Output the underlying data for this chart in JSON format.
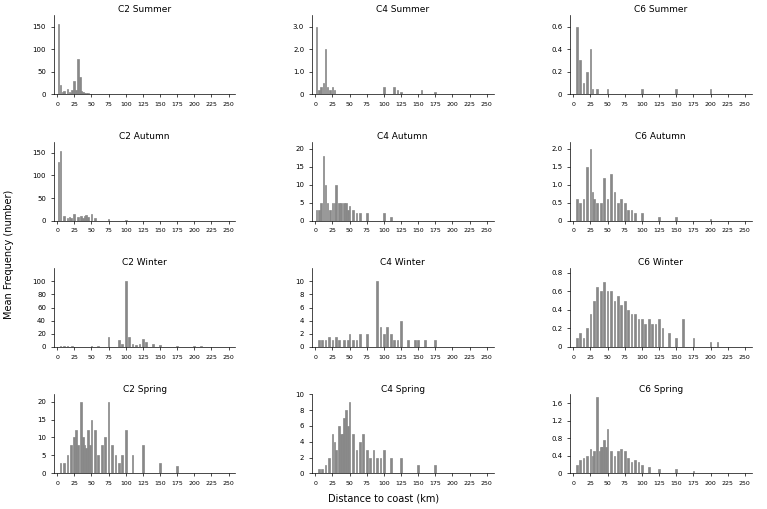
{
  "titles": [
    [
      "C2 Summer",
      "C4 Summer",
      "C6 Summer"
    ],
    [
      "C2 Autumn",
      "C4 Autumn",
      "C6 Autumn"
    ],
    [
      "C2 Winter",
      "C4 Winter",
      "C6 Winter"
    ],
    [
      "C2 Spring",
      "C4 Spring",
      "C6 Spring"
    ]
  ],
  "xlabel": "Distance to coast (km)",
  "ylabel": "Mean Frequency (number)",
  "x_ticks": [
    0,
    25,
    50,
    75,
    100,
    125,
    150,
    175,
    200,
    225,
    250
  ],
  "ylims": [
    [
      [
        0,
        175
      ],
      [
        0,
        3.5
      ],
      [
        0,
        0.7
      ]
    ],
    [
      [
        0,
        175
      ],
      [
        0,
        22
      ],
      [
        0,
        2.2
      ]
    ],
    [
      [
        0,
        120
      ],
      [
        0,
        12
      ],
      [
        0,
        0.85
      ]
    ],
    [
      [
        0,
        22
      ],
      [
        0,
        10
      ],
      [
        0,
        1.8
      ]
    ]
  ],
  "yticks": [
    [
      [
        0,
        50,
        100,
        150
      ],
      [
        0,
        1.0,
        2.0,
        3.0
      ],
      [
        0,
        0.2,
        0.4,
        0.6
      ]
    ],
    [
      [
        0,
        50,
        100,
        150
      ],
      [
        0,
        5,
        10,
        15,
        20
      ],
      [
        0,
        0.5,
        1.0,
        1.5,
        2.0
      ]
    ],
    [
      [
        0,
        20,
        40,
        60,
        80,
        100
      ],
      [
        0,
        2,
        4,
        6,
        8,
        10
      ],
      [
        0,
        0.2,
        0.4,
        0.6,
        0.8
      ]
    ],
    [
      [
        0,
        5,
        10,
        15,
        20
      ],
      [
        0,
        2,
        4,
        6,
        8,
        10
      ],
      [
        0,
        0.4,
        0.8,
        1.2,
        1.6
      ]
    ]
  ],
  "bar_color": "#888888",
  "bar_width": 2.5,
  "background": "#ffffff",
  "data": {
    "C2 Summer": {
      "x": [
        2,
        5,
        8,
        10,
        15,
        18,
        20,
        22,
        25,
        28,
        30,
        33,
        35,
        38,
        40,
        42,
        45,
        150
      ],
      "y": [
        155,
        20,
        5,
        8,
        12,
        5,
        3,
        10,
        30,
        10,
        78,
        38,
        8,
        5,
        3,
        2,
        2,
        1
      ]
    },
    "C4 Summer": {
      "x": [
        2,
        5,
        8,
        12,
        15,
        18,
        22,
        25,
        28,
        100,
        115,
        120,
        125,
        155,
        175
      ],
      "y": [
        3.0,
        0.2,
        0.3,
        0.5,
        2.0,
        0.3,
        0.2,
        0.3,
        0.2,
        0.3,
        0.3,
        0.2,
        0.1,
        0.2,
        0.1
      ]
    },
    "C6 Summer": {
      "x": [
        5,
        10,
        15,
        20,
        25,
        28,
        35,
        50,
        100,
        150,
        200
      ],
      "y": [
        0.6,
        0.3,
        0.1,
        0.2,
        0.4,
        0.05,
        0.05,
        0.05,
        0.05,
        0.05,
        0.05
      ]
    },
    "C2 Autumn": {
      "x": [
        2,
        5,
        10,
        15,
        18,
        20,
        25,
        30,
        35,
        38,
        40,
        42,
        45,
        50,
        55,
        75,
        100
      ],
      "y": [
        130,
        155,
        10,
        5,
        8,
        5,
        15,
        8,
        10,
        5,
        10,
        12,
        8,
        15,
        5,
        3,
        2
      ]
    },
    "C4 Autumn": {
      "x": [
        2,
        5,
        8,
        12,
        15,
        18,
        22,
        25,
        28,
        30,
        35,
        38,
        42,
        45,
        48,
        50,
        55,
        60,
        65,
        75,
        100,
        110
      ],
      "y": [
        3,
        3,
        5,
        18,
        10,
        5,
        3,
        5,
        5,
        10,
        5,
        5,
        5,
        5,
        3,
        4,
        3,
        2,
        2,
        2,
        2,
        1
      ]
    },
    "C6 Autumn": {
      "x": [
        5,
        10,
        15,
        20,
        25,
        28,
        30,
        35,
        40,
        45,
        50,
        55,
        60,
        65,
        70,
        75,
        80,
        85,
        90,
        100,
        125,
        150,
        200
      ],
      "y": [
        0.6,
        0.5,
        0.6,
        1.5,
        2.0,
        0.8,
        0.6,
        0.5,
        0.5,
        1.2,
        0.6,
        1.3,
        0.8,
        0.5,
        0.6,
        0.5,
        0.3,
        0.3,
        0.2,
        0.2,
        0.1,
        0.1,
        0.05
      ]
    },
    "C2 Winter": {
      "x": [
        5,
        10,
        15,
        22,
        50,
        60,
        75,
        90,
        95,
        100,
        105,
        110,
        115,
        120,
        125,
        130,
        140,
        150,
        175,
        200,
        210
      ],
      "y": [
        2,
        2,
        2,
        2,
        2,
        2,
        15,
        10,
        5,
        100,
        15,
        5,
        3,
        5,
        12,
        8,
        5,
        3,
        2,
        2,
        1
      ]
    },
    "C4 Winter": {
      "x": [
        5,
        10,
        15,
        20,
        25,
        30,
        35,
        42,
        48,
        50,
        55,
        60,
        65,
        75,
        90,
        95,
        100,
        105,
        110,
        115,
        120,
        125,
        135,
        145,
        150,
        160,
        175
      ],
      "y": [
        1,
        1,
        1,
        1.5,
        1,
        1.5,
        1,
        1,
        1,
        2,
        1,
        1,
        2,
        2,
        10,
        3,
        2,
        3,
        2,
        1,
        1,
        4,
        1,
        1,
        1,
        1,
        1
      ]
    },
    "C6 Winter": {
      "x": [
        5,
        10,
        15,
        20,
        25,
        30,
        35,
        40,
        45,
        50,
        55,
        60,
        65,
        70,
        75,
        80,
        85,
        90,
        95,
        100,
        105,
        110,
        115,
        120,
        125,
        130,
        140,
        150,
        160,
        175,
        200,
        210
      ],
      "y": [
        0.1,
        0.15,
        0.1,
        0.2,
        0.35,
        0.5,
        0.65,
        0.6,
        0.7,
        0.6,
        0.6,
        0.5,
        0.55,
        0.45,
        0.5,
        0.4,
        0.35,
        0.35,
        0.3,
        0.3,
        0.25,
        0.3,
        0.25,
        0.25,
        0.3,
        0.2,
        0.15,
        0.1,
        0.3,
        0.1,
        0.05,
        0.05
      ]
    },
    "C2 Spring": {
      "x": [
        5,
        10,
        15,
        20,
        25,
        28,
        30,
        35,
        38,
        40,
        42,
        45,
        48,
        50,
        55,
        60,
        65,
        70,
        75,
        80,
        85,
        90,
        95,
        100,
        110,
        125,
        150,
        175
      ],
      "y": [
        3,
        3,
        5,
        8,
        10,
        12,
        8,
        20,
        10,
        8,
        7,
        12,
        8,
        15,
        12,
        5,
        8,
        10,
        20,
        8,
        5,
        3,
        5,
        12,
        5,
        8,
        3,
        2
      ]
    },
    "C4 Spring": {
      "x": [
        5,
        10,
        15,
        20,
        25,
        28,
        30,
        35,
        38,
        40,
        42,
        45,
        48,
        50,
        55,
        60,
        65,
        70,
        75,
        80,
        85,
        90,
        95,
        100,
        110,
        125,
        150,
        175
      ],
      "y": [
        0.5,
        0.5,
        1,
        2,
        5,
        4,
        3,
        6,
        5,
        5,
        7,
        8,
        6,
        9,
        5,
        3,
        4,
        5,
        3,
        2,
        3,
        2,
        2,
        3,
        2,
        2,
        1,
        1
      ]
    },
    "C6 Spring": {
      "x": [
        5,
        10,
        15,
        20,
        25,
        28,
        30,
        35,
        38,
        40,
        42,
        45,
        48,
        50,
        55,
        60,
        65,
        70,
        75,
        80,
        85,
        90,
        95,
        100,
        110,
        125,
        150,
        175
      ],
      "y": [
        0.2,
        0.3,
        0.35,
        0.4,
        0.55,
        0.4,
        0.5,
        1.75,
        0.5,
        0.6,
        0.6,
        0.75,
        0.6,
        1.0,
        0.5,
        0.4,
        0.5,
        0.55,
        0.5,
        0.35,
        0.25,
        0.3,
        0.25,
        0.2,
        0.15,
        0.1,
        0.1,
        0.05
      ]
    }
  }
}
